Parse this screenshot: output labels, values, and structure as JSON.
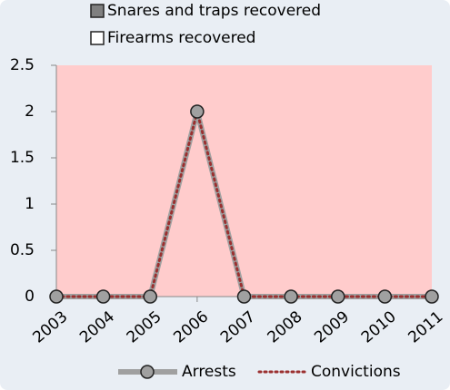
{
  "chart_data": {
    "type": "line",
    "extra_legend": [
      {
        "name": "Snares and traps recovered",
        "color": "#808080"
      },
      {
        "name": "Firearms recovered",
        "color": "#ffffff"
      }
    ],
    "categories": [
      "2003",
      "2004",
      "2005",
      "2006",
      "2007",
      "2008",
      "2009",
      "2010",
      "2011"
    ],
    "series": [
      {
        "name": "Arrests",
        "color": "#a0a0a0",
        "values": [
          0,
          0,
          0,
          2,
          0,
          0,
          0,
          0,
          0
        ]
      },
      {
        "name": "Convictions",
        "color": "#9b3030",
        "values": [
          0,
          0,
          0,
          2,
          0,
          0,
          0,
          0,
          0
        ]
      }
    ],
    "ylim": [
      0,
      2.5
    ],
    "yticks": [
      0,
      0.5,
      1,
      1.5,
      2,
      2.5
    ],
    "grid": false,
    "plot_background": "#ffcccc"
  }
}
